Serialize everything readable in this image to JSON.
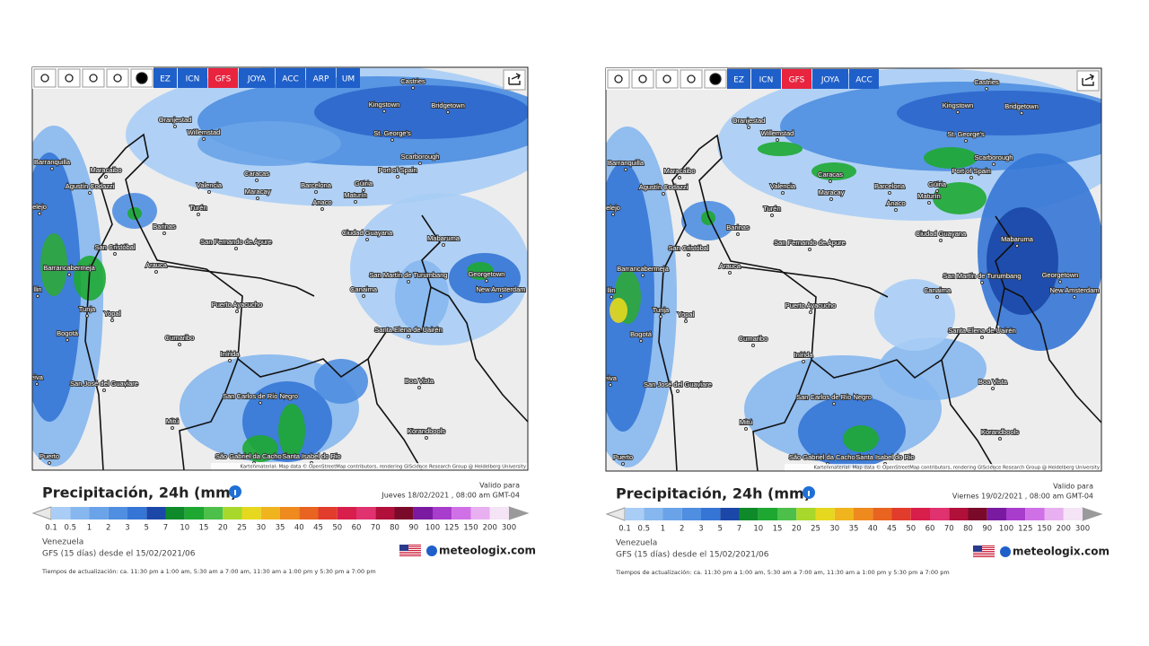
{
  "panels": [
    {
      "toolbar": [
        {
          "label": "EZ",
          "color": "#1f5fc9"
        },
        {
          "label": "ICN",
          "color": "#1f5fc9"
        },
        {
          "label": "GFS",
          "color": "#e8243f"
        },
        {
          "label": "JOYA",
          "color": "#1f5fc9"
        },
        {
          "label": "ACC",
          "color": "#1f5fc9"
        },
        {
          "label": "ARP",
          "color": "#1f5fc9"
        },
        {
          "label": "UM",
          "color": "#1f5fc9"
        }
      ],
      "map_labels": [
        "Castries",
        "Kingstown",
        "Bridgetown",
        "Oranjestad",
        "Willemstad",
        "St. George's",
        "Scarborough",
        "Port of Spain",
        "Barranquilla",
        "Maracaibo",
        "Agustín Codazzi",
        "Caracas",
        "Valencia",
        "Maracay",
        "Barcelona",
        "Güiria",
        "Maturín",
        "Anaco",
        "Turén",
        "elejo",
        "Barinas",
        "Ciudad Guayana",
        "Mabaruma",
        "San Cristóbal",
        "San Fernando de Apure",
        "Arauca",
        "Barrancabermeja",
        "Georgetown",
        "San Martín de Turumbang",
        "New Amsterdam",
        "Canaima",
        "llin",
        "Tunja",
        "Yopal",
        "Puerto Ayacucho",
        "Santa Elena de Uairén",
        "Bogotá",
        "Cumaribo",
        "Inírida",
        "eiva",
        "San José del Guaviare",
        "Boa Vista",
        "San Carlos de Río Negro",
        "Mitú",
        "Korandbools",
        "São Gabriel da Cachoeira",
        "Santa Isabel do Rio",
        "Puerto"
      ],
      "attribution": "Kartenmaterial: Map data © OpenStreetMap contributors, rendering GIScience Research Group @ Heidelberg University",
      "title": "Precipitación, 24h (mm)",
      "valid_label": "Valido para",
      "valid_date": "Jueves 18/02/2021 , 08:00 am GMT-04",
      "scale": {
        "values": [
          0.1,
          0.5,
          1,
          2,
          3,
          5,
          7,
          10,
          15,
          20,
          25,
          30,
          35,
          40,
          45,
          50,
          60,
          70,
          80,
          90,
          100,
          125,
          150,
          200,
          300
        ],
        "colors": [
          "#a9cdf5",
          "#86b7ee",
          "#6aa3e8",
          "#4f8ee0",
          "#3575d5",
          "#1b47a8",
          "#0e8a2a",
          "#1ea832",
          "#4cc04a",
          "#a8d82c",
          "#e6d81e",
          "#f0b41e",
          "#ee8a1e",
          "#e86420",
          "#e23c2c",
          "#d81e4a",
          "#e0326e",
          "#b0103a",
          "#7a0a2a",
          "#7a1aa0",
          "#a83ccc",
          "#d070e6",
          "#e8b0f0",
          "#f4e4f6"
        ],
        "under_color": "#e8e8e8",
        "over_color": "#9a9a9a"
      },
      "region": "Venezuela",
      "model_run": "GFS (15 días) desde el 15/02/2021/06",
      "brand": "meteologix.com",
      "update_times": "Tiempos de actualización: ca. 11:30 pm a 1:00 am, 5:30 am a 7:00 am, 11:30 am a 1:00 pm y 5:30 pm a 7:00 pm"
    },
    {
      "toolbar": [
        {
          "label": "EZ",
          "color": "#1f5fc9"
        },
        {
          "label": "ICN",
          "color": "#1f5fc9"
        },
        {
          "label": "GFS",
          "color": "#e8243f"
        },
        {
          "label": "JOYA",
          "color": "#1f5fc9"
        },
        {
          "label": "ACC",
          "color": "#1f5fc9"
        }
      ],
      "map_labels": [
        "Castries",
        "Kingstown",
        "Bridgetown",
        "Oranjestad",
        "Willemstad",
        "St. George's",
        "Scarborough",
        "Port of Spain",
        "Barranquilla",
        "Maracaibo",
        "Agustín Codazzi",
        "Caracas",
        "Valencia",
        "Maracay",
        "Barcelona",
        "Güiria",
        "Maturín",
        "Anaco",
        "Turén",
        "elejo",
        "Barinas",
        "Ciudad Guayana",
        "Mabaruma",
        "San Cristóbal",
        "San Fernando de Apure",
        "Arauca",
        "Barrancabermeja",
        "Georgetown",
        "San Martín de Turumbang",
        "New Amsterdam",
        "Canaima",
        "llin",
        "Tunja",
        "Yopal",
        "Puerto Ayacucho",
        "Santa Elena de Uairén",
        "Bogotá",
        "Cumaribo",
        "Inírida",
        "eiva",
        "San José del Guaviare",
        "Boa Vista",
        "San Carlos de Río Negro",
        "Mitú",
        "Korandbools",
        "São Gabriel da Cachoeira",
        "Santa Isabel do Rio",
        "Puerto"
      ],
      "attribution": "Kartenmaterial: Map data © OpenStreetMap contributors, rendering GIScience Research Group @ Heidelberg University",
      "title": "Precipitación, 24h (mm)",
      "valid_label": "Valido para",
      "valid_date": "Viernes 19/02/2021 , 08:00 am GMT-04",
      "scale": {
        "values": [
          0.1,
          0.5,
          1,
          2,
          3,
          5,
          7,
          10,
          15,
          20,
          25,
          30,
          35,
          40,
          45,
          50,
          60,
          70,
          80,
          90,
          100,
          125,
          150,
          200,
          300
        ],
        "colors": [
          "#a9cdf5",
          "#86b7ee",
          "#6aa3e8",
          "#4f8ee0",
          "#3575d5",
          "#1b47a8",
          "#0e8a2a",
          "#1ea832",
          "#4cc04a",
          "#a8d82c",
          "#e6d81e",
          "#f0b41e",
          "#ee8a1e",
          "#e86420",
          "#e23c2c",
          "#d81e4a",
          "#e0326e",
          "#b0103a",
          "#7a0a2a",
          "#7a1aa0",
          "#a83ccc",
          "#d070e6",
          "#e8b0f0",
          "#f4e4f6"
        ],
        "under_color": "#e8e8e8",
        "over_color": "#9a9a9a"
      },
      "region": "Venezuela",
      "model_run": "GFS (15 días) desde el 15/02/2021/06",
      "brand": "meteologix.com",
      "update_times": "Tiempos de actualización: ca. 11:30 pm a 1:00 am, 5:30 am a 7:00 am, 11:30 am a 1:00 pm y 5:30 pm a 7:00 pm"
    }
  ]
}
